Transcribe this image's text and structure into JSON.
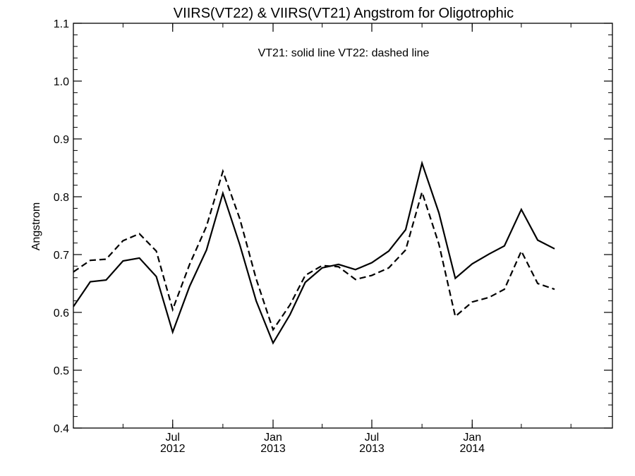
{
  "chart_data": {
    "type": "line",
    "title": "VIIRS(VT22) & VIIRS(VT21)  Angstrom for Oligotrophic",
    "annotation": "VT21: solid line   VT22: dashed line",
    "xlabel": "",
    "ylabel": "Angstrom",
    "ylim": [
      0.4,
      1.1
    ],
    "yticks": [
      "0.4",
      "0.5",
      "0.6",
      "0.7",
      "0.8",
      "0.9",
      "1.0",
      "1.1"
    ],
    "xlim": [
      "2012-01-01",
      "2014-09-15"
    ],
    "xtick_labels": [
      {
        "month": "Jul",
        "year": "2012",
        "date": "2012-07-01"
      },
      {
        "month": "Jan",
        "year": "2013",
        "date": "2013-01-01"
      },
      {
        "month": "Jul",
        "year": "2013",
        "date": "2013-07-01"
      },
      {
        "month": "Jan",
        "year": "2014",
        "date": "2014-01-01"
      }
    ],
    "grid": false,
    "series": [
      {
        "name": "VT21",
        "style": "solid",
        "color": "#000000",
        "x": [
          "2012-01-01",
          "2012-02-01",
          "2012-03-01",
          "2012-04-01",
          "2012-05-01",
          "2012-06-01",
          "2012-07-01",
          "2012-08-01",
          "2012-09-01",
          "2012-10-01",
          "2012-11-01",
          "2012-12-01",
          "2013-01-01",
          "2013-02-01",
          "2013-03-01",
          "2013-04-01",
          "2013-05-01",
          "2013-06-01",
          "2013-07-01",
          "2013-08-01",
          "2013-09-01",
          "2013-10-01",
          "2013-11-01",
          "2013-12-01",
          "2014-01-01",
          "2014-02-01",
          "2014-03-01",
          "2014-04-01",
          "2014-05-01",
          "2014-06-01"
        ],
        "values": [
          0.61,
          0.653,
          0.656,
          0.689,
          0.694,
          0.662,
          0.566,
          0.645,
          0.708,
          0.806,
          0.717,
          0.62,
          0.547,
          0.596,
          0.652,
          0.677,
          0.683,
          0.674,
          0.686,
          0.706,
          0.743,
          0.858,
          0.772,
          0.659,
          0.684,
          0.701,
          0.715,
          0.778,
          0.725,
          0.71
        ]
      },
      {
        "name": "VT22",
        "style": "dashed",
        "color": "#000000",
        "x": [
          "2012-01-01",
          "2012-02-01",
          "2012-03-01",
          "2012-04-01",
          "2012-05-01",
          "2012-06-01",
          "2012-07-01",
          "2012-08-01",
          "2012-09-01",
          "2012-10-01",
          "2012-11-01",
          "2012-12-01",
          "2013-01-01",
          "2013-02-01",
          "2013-03-01",
          "2013-04-01",
          "2013-05-01",
          "2013-06-01",
          "2013-07-01",
          "2013-08-01",
          "2013-09-01",
          "2013-10-01",
          "2013-11-01",
          "2013-12-01",
          "2014-01-01",
          "2014-02-01",
          "2014-03-01",
          "2014-04-01",
          "2014-05-01",
          "2014-06-01"
        ],
        "values": [
          0.67,
          0.69,
          0.692,
          0.724,
          0.736,
          0.706,
          0.605,
          0.683,
          0.749,
          0.844,
          0.762,
          0.658,
          0.57,
          0.613,
          0.664,
          0.681,
          0.679,
          0.657,
          0.664,
          0.677,
          0.708,
          0.808,
          0.718,
          0.593,
          0.618,
          0.626,
          0.64,
          0.706,
          0.65,
          0.64
        ]
      }
    ]
  }
}
